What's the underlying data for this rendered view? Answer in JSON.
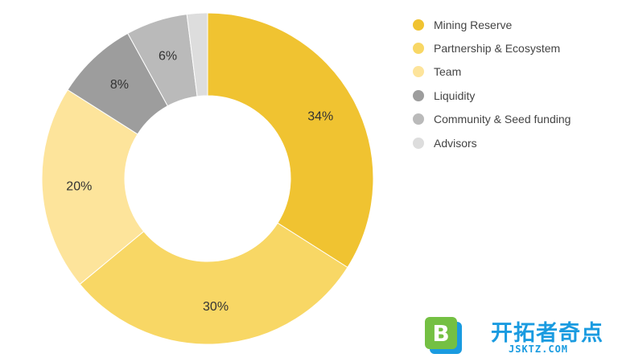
{
  "chart_data": {
    "type": "pie",
    "variant": "donut",
    "title": "",
    "categories": [
      "Mining Reserve",
      "Partnership & Ecosystem",
      "Team",
      "Liquidity",
      "Community & Seed funding",
      "Advisors"
    ],
    "values": [
      34,
      30,
      20,
      8,
      6,
      2
    ],
    "value_labels": [
      "34%",
      "30%",
      "20%",
      "8%",
      "6%",
      ""
    ],
    "unit": "%",
    "colors": [
      "#f0c331",
      "#f8d765",
      "#fde49b",
      "#9d9d9d",
      "#bababa",
      "#dddddd"
    ],
    "start_angle_deg": 0,
    "direction": "clockwise",
    "legend_position": "top-right"
  },
  "watermark": {
    "badge_letter": "B",
    "title": "开拓者奇点",
    "url": "JSKTZ.COM",
    "colors": {
      "badge_green": "#74c043",
      "badge_blue": "#1a9be0",
      "text": "#1a9be0"
    }
  }
}
